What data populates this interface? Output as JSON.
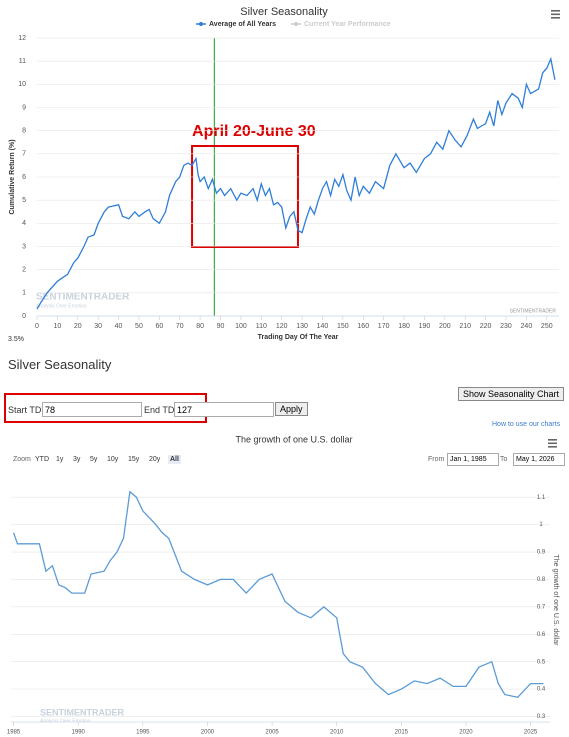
{
  "chart_data": [
    {
      "type": "line",
      "title": "Silver Seasonality",
      "y_label": "Cumulative Return (%)",
      "x_label": "Trading Day Of The Year",
      "x": [
        0,
        2,
        5,
        10,
        15,
        18,
        20,
        23,
        25,
        28,
        30,
        33,
        35,
        40,
        42,
        45,
        48,
        50,
        53,
        55,
        57,
        60,
        63,
        65,
        68,
        70,
        72,
        74,
        76,
        78,
        79,
        80,
        82,
        84,
        86,
        88,
        90,
        92,
        95,
        98,
        100,
        103,
        106,
        108,
        110,
        112,
        114,
        116,
        118,
        120,
        122,
        124,
        126,
        128,
        130,
        132,
        134,
        136,
        138,
        140,
        142,
        144,
        146,
        148,
        150,
        152,
        154,
        156,
        158,
        160,
        163,
        166,
        170,
        173,
        176,
        178,
        180,
        183,
        186,
        190,
        193,
        196,
        199,
        202,
        205,
        208,
        211,
        214,
        216,
        218,
        220,
        222,
        224,
        226,
        228,
        230,
        233,
        236,
        238,
        240,
        242,
        244,
        246,
        248,
        250,
        252,
        254
      ],
      "series": [
        {
          "name": "Average of All Years",
          "color": "#2f7ed8",
          "values": [
            0.3,
            0.6,
            1.0,
            1.5,
            1.8,
            2.3,
            2.5,
            3.0,
            3.4,
            3.5,
            4.0,
            4.5,
            4.7,
            4.8,
            4.3,
            4.2,
            4.5,
            4.3,
            4.5,
            4.6,
            4.2,
            4.0,
            4.5,
            5.2,
            5.8,
            6.0,
            6.5,
            6.6,
            6.5,
            6.8,
            6.1,
            5.8,
            6.0,
            5.5,
            5.9,
            5.3,
            5.5,
            5.2,
            5.5,
            5.0,
            5.3,
            5.2,
            5.5,
            5.0,
            5.7,
            5.2,
            5.5,
            4.8,
            4.9,
            4.7,
            3.8,
            4.3,
            4.5,
            3.7,
            3.6,
            4.2,
            4.7,
            4.4,
            5.0,
            5.5,
            5.8,
            5.2,
            5.9,
            5.6,
            6.1,
            5.4,
            5.0,
            6.0,
            5.2,
            5.6,
            5.3,
            5.8,
            5.5,
            6.5,
            7.0,
            6.7,
            6.4,
            6.6,
            6.2,
            6.8,
            7.0,
            7.5,
            7.2,
            8.0,
            7.6,
            7.3,
            7.8,
            8.5,
            8.1,
            8.2,
            8.3,
            8.8,
            8.2,
            9.3,
            8.7,
            9.2,
            9.6,
            9.4,
            9.0,
            10.0,
            9.6,
            9.7,
            9.8,
            10.5,
            10.7,
            11.1,
            10.2
          ]
        },
        {
          "name": "Current Year Performance",
          "color": "#cccccc",
          "values": [
            null,
            null,
            null,
            null,
            null,
            null,
            null,
            null,
            null,
            null,
            null,
            null,
            null,
            null,
            null,
            null,
            null,
            null,
            null,
            null,
            null,
            null,
            null,
            null,
            null,
            null,
            null,
            null,
            null,
            null,
            null,
            null,
            null,
            null,
            null,
            null,
            null,
            null,
            null,
            null,
            null,
            null,
            null,
            null,
            null,
            null,
            null,
            null,
            null,
            null,
            null,
            null,
            null,
            null,
            null,
            null,
            null,
            null,
            null,
            null,
            null,
            null,
            null,
            null,
            null,
            null,
            null,
            null,
            null,
            null,
            null,
            null,
            null,
            null,
            null,
            null,
            null,
            null,
            null,
            null,
            null,
            null,
            null,
            null,
            null,
            null,
            null,
            null,
            null,
            null,
            null,
            null,
            null,
            null,
            null,
            null,
            null,
            null,
            null,
            null,
            null,
            null,
            null,
            null,
            null,
            null,
            null
          ]
        }
      ],
      "xlim": [
        0,
        256
      ],
      "ylim": [
        0,
        12
      ],
      "xticks": [
        0,
        10,
        20,
        30,
        40,
        50,
        60,
        70,
        80,
        90,
        100,
        110,
        120,
        130,
        140,
        150,
        160,
        170,
        180,
        190,
        200,
        210,
        220,
        230,
        240,
        250
      ],
      "yticks": [
        0,
        1,
        2,
        3,
        4,
        5,
        6,
        7,
        8,
        9,
        10,
        11,
        12
      ],
      "vline": 87,
      "vline_color": "#3cb043",
      "annotation": "April 20-June 30",
      "annotation_color": "#dd0000",
      "watermark": "SENTIMENTRADER",
      "watermark_tagline": "Analysis Over Emotion",
      "credit": "SENTIMENTRADER",
      "footnote": "3.5%"
    },
    {
      "type": "line",
      "title": "The growth of one U.S. dollar",
      "y_label": "The growth of one U.S. dollar",
      "x": [
        1985,
        1985.3,
        1987,
        1987.5,
        1988,
        1988.5,
        1989,
        1989.5,
        1990.5,
        1991,
        1992,
        1992.5,
        1993,
        1993.5,
        1994,
        1994.5,
        1995,
        1996,
        1996.5,
        1997,
        1998,
        1999,
        2000,
        2001,
        2002,
        2003,
        2004,
        2005,
        2006,
        2007,
        2008,
        2009,
        2010,
        2010.5,
        2011,
        2012,
        2013,
        2014,
        2015,
        2016,
        2017,
        2018,
        2019,
        2020,
        2021,
        2022,
        2022.5,
        2023,
        2024,
        2025,
        2026
      ],
      "series": [
        {
          "name": "The growth of one U.S. dollar",
          "color": "#5b9bd5",
          "values": [
            0.97,
            0.93,
            0.93,
            0.83,
            0.85,
            0.78,
            0.77,
            0.75,
            0.75,
            0.82,
            0.83,
            0.87,
            0.9,
            0.95,
            1.12,
            1.1,
            1.05,
            1.0,
            0.97,
            0.95,
            0.83,
            0.8,
            0.78,
            0.8,
            0.8,
            0.75,
            0.8,
            0.82,
            0.72,
            0.68,
            0.66,
            0.7,
            0.66,
            0.53,
            0.5,
            0.48,
            0.42,
            0.38,
            0.4,
            0.43,
            0.42,
            0.44,
            0.41,
            0.41,
            0.48,
            0.5,
            0.42,
            0.38,
            0.37,
            0.42,
            0.42
          ]
        }
      ],
      "xlim": [
        1984.8,
        2026.5
      ],
      "ylim": [
        0.28,
        1.17
      ],
      "xticks": [
        1985,
        1990,
        1995,
        2000,
        2005,
        2010,
        2015,
        2020,
        2025
      ],
      "yticks": [
        0.3,
        0.4,
        0.5,
        0.6,
        0.7,
        0.8,
        0.9,
        1,
        1.1
      ],
      "watermark": "SENTIMENTRADER",
      "watermark_tagline": "Analysis Over Emotion"
    }
  ],
  "controls": {
    "heading": "Silver Seasonality",
    "start_label": "Start TDY:",
    "start_value": 78,
    "end_label": "End TDY:",
    "end_value": 127,
    "apply": "Apply",
    "show_chart": "Show Seasonality Chart",
    "help_link": "How to use our charts",
    "zoom_label": "Zoom",
    "zoom_buttons": [
      "YTD",
      "1y",
      "3y",
      "5y",
      "10y",
      "15y",
      "20y",
      "All"
    ],
    "zoom_selected": 7,
    "from_label": "From",
    "from_value": "Jan 1, 1985",
    "to_label": "To",
    "to_value": "May 1, 2026"
  }
}
